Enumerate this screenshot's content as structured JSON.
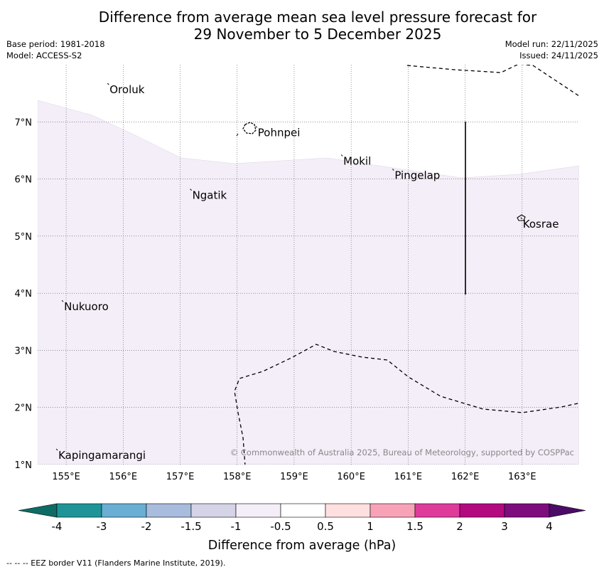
{
  "title": {
    "line1": "Difference from average mean sea level pressure forecast for",
    "line2": "29 November to 5 December 2025"
  },
  "meta": {
    "base_period": "Base period: 1981-2018",
    "model": "Model: ACCESS-S2",
    "model_run": "Model run: 22/11/2025",
    "issued": "Issued: 24/11/2025"
  },
  "map": {
    "lon_range": [
      154.5,
      164.0
    ],
    "lat_range": [
      1.0,
      8.0
    ],
    "lon_ticks": [
      "155°E",
      "156°E",
      "157°E",
      "158°E",
      "159°E",
      "160°E",
      "161°E",
      "162°E",
      "163°E"
    ],
    "lat_ticks": [
      "1°N",
      "2°N",
      "3°N",
      "4°N",
      "5°N",
      "6°N",
      "7°N"
    ],
    "places": [
      {
        "name": "Oroluk",
        "lon": 155.75,
        "lat": 7.65
      },
      {
        "name": "Pohnpei",
        "lon": 158.35,
        "lat": 6.9
      },
      {
        "name": "Mokil",
        "lon": 159.85,
        "lat": 6.4
      },
      {
        "name": "Pingelap",
        "lon": 160.75,
        "lat": 6.15
      },
      {
        "name": "Ngatik",
        "lon": 157.2,
        "lat": 5.8
      },
      {
        "name": "Kosrae",
        "lon": 163.0,
        "lat": 5.3
      },
      {
        "name": "Nukuoro",
        "lon": 154.95,
        "lat": 3.85
      },
      {
        "name": "Kapingamarangi",
        "lon": 154.85,
        "lat": 1.25
      }
    ],
    "copyright": "© Commonwealth of Australia 2025, Bureau of Meteorology, supported by COSPPac"
  },
  "colorbar": {
    "labels": [
      "-4",
      "-3",
      "-2",
      "-1.5",
      "-1",
      "-0.5",
      "0.5",
      "1",
      "1.5",
      "2",
      "3",
      "4"
    ],
    "colors": [
      "#1f9498",
      "#69aed3",
      "#a8bcdd",
      "#d4d4e6",
      "#f4eef8",
      "#ffffff",
      "#ffe0e0",
      "#f8a2b8",
      "#df3b9a",
      "#b30a80",
      "#7d0d7d"
    ],
    "low_extend_color": "#0e6b66",
    "high_extend_color": "#4a0c66",
    "label": "Difference from average (hPa)",
    "fill_color": "#f4eef8"
  },
  "footnote": "--  --  -- EEZ border V11 (Flanders Marine Institute, 2019)."
}
